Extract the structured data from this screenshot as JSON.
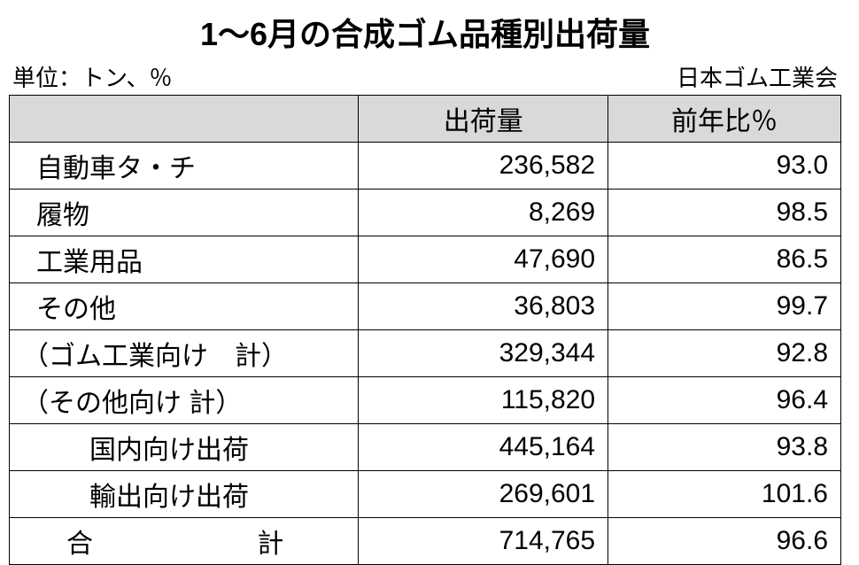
{
  "title": "1～6月の合成ゴム品種別出荷量",
  "unit_label": "単位：トン、％",
  "source_label": "日本ゴム工業会",
  "table": {
    "type": "table",
    "background_color": "#ffffff",
    "border_color": "#000000",
    "header_bg": "#d9d9d9",
    "text_color": "#000000",
    "title_fontsize": 36,
    "meta_fontsize": 26,
    "cell_fontsize": 30,
    "col_widths_pct": [
      42,
      30,
      28
    ],
    "columns": [
      "",
      "出荷量",
      "前年比％"
    ],
    "rows": [
      {
        "label": "自動車タ・チ",
        "shipment": "236,582",
        "yoy": "93.0",
        "indent": "indent1"
      },
      {
        "label": "履物",
        "shipment": "8,269",
        "yoy": "98.5",
        "indent": "indent1"
      },
      {
        "label": "工業用品",
        "shipment": "47,690",
        "yoy": "86.5",
        "indent": "indent1"
      },
      {
        "label": "その他",
        "shipment": "36,803",
        "yoy": "99.7",
        "indent": "indent1"
      },
      {
        "label": "（ゴム工業向け　計）",
        "shipment": "329,344",
        "yoy": "92.8",
        "indent": "indent2"
      },
      {
        "label": "（その他向け 計）",
        "shipment": "115,820",
        "yoy": "96.4",
        "indent": "indent2"
      },
      {
        "label": "国内向け出荷",
        "shipment": "445,164",
        "yoy": "93.8",
        "indent": "indent3"
      },
      {
        "label": "輸出向け出荷",
        "shipment": "269,601",
        "yoy": "101.6",
        "indent": "indent3"
      }
    ],
    "total_row": {
      "label_a": "合",
      "label_b": "計",
      "shipment": "714,765",
      "yoy": "96.6"
    }
  }
}
